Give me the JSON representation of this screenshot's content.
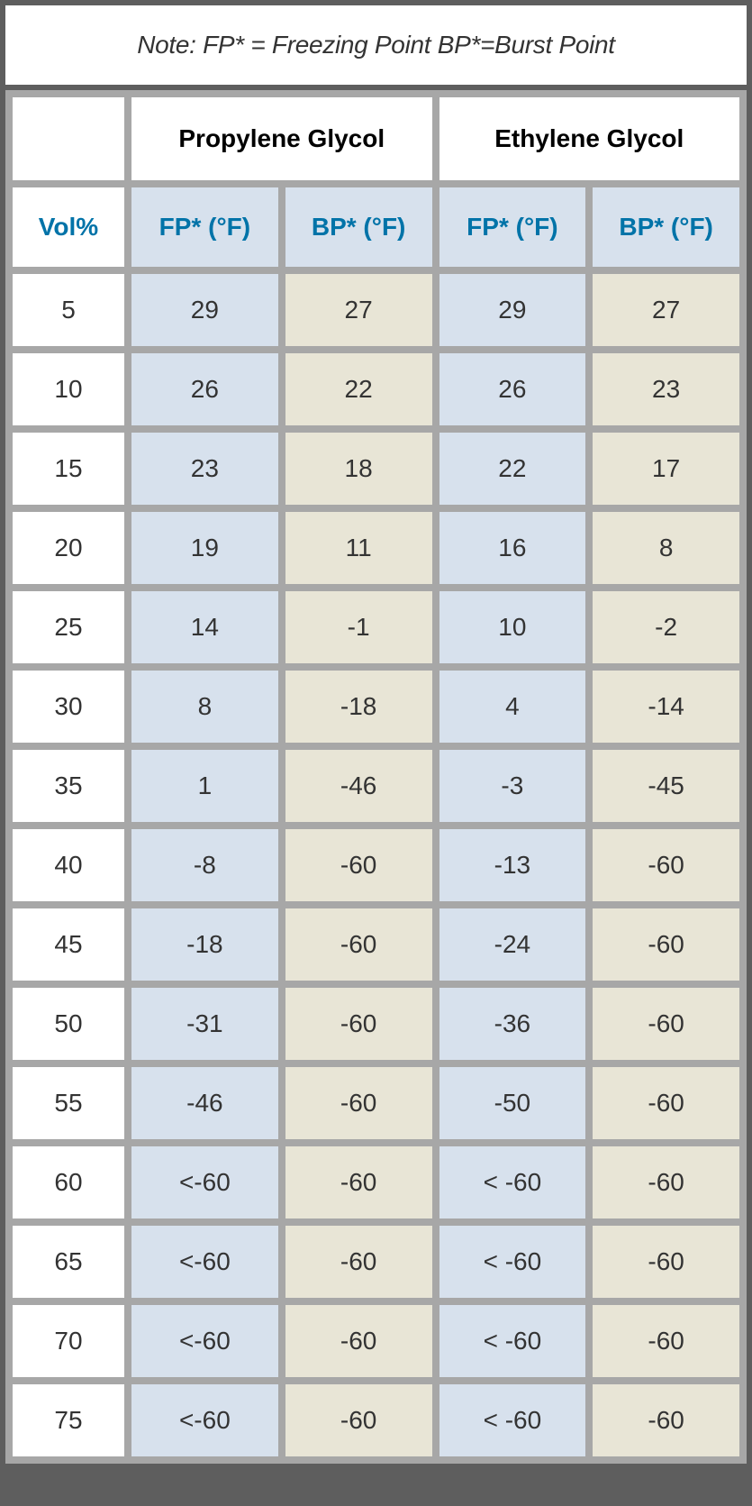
{
  "note": "Note: FP* = Freezing Point   BP*=Burst Point",
  "table": {
    "type": "table",
    "colors": {
      "background_outer": "#5e5e5e",
      "grid_gap": "#a7a7a7",
      "header_bg": "#ffffff",
      "subheader_bg": "#d7e1ed",
      "vol_cell_bg": "#ffffff",
      "fp_cell_bg": "#d7e1ed",
      "bp_cell_bg": "#e8e5d6",
      "accent_text": "#0073a8",
      "body_text": "#333333"
    },
    "typography": {
      "font_family": "Helvetica",
      "header_fontsize": 28,
      "header_weight": "bold",
      "subheader_fontsize": 28,
      "subheader_weight": "bold",
      "cell_fontsize": 28,
      "note_fontsize": 28,
      "note_style": "italic"
    },
    "group_headers": {
      "blank": "",
      "propylene": "Propylene Glycol",
      "ethylene": "Ethylene Glycol"
    },
    "sub_headers": {
      "vol": "Vol%",
      "fp": "FP* (°F)",
      "bp": "BP* (°F)"
    },
    "columns": [
      {
        "key": "vol",
        "label": "Vol%",
        "width": "16%"
      },
      {
        "key": "pg_fp",
        "label": "FP* (°F)",
        "width": "21%"
      },
      {
        "key": "pg_bp",
        "label": "BP* (°F)",
        "width": "21%"
      },
      {
        "key": "eg_fp",
        "label": "FP* (°F)",
        "width": "21%"
      },
      {
        "key": "eg_bp",
        "label": "BP* (°F)",
        "width": "21%"
      }
    ],
    "rows": [
      {
        "vol": "5",
        "pg_fp": "29",
        "pg_bp": "27",
        "eg_fp": "29",
        "eg_bp": "27"
      },
      {
        "vol": "10",
        "pg_fp": "26",
        "pg_bp": "22",
        "eg_fp": "26",
        "eg_bp": "23"
      },
      {
        "vol": "15",
        "pg_fp": "23",
        "pg_bp": "18",
        "eg_fp": "22",
        "eg_bp": "17"
      },
      {
        "vol": "20",
        "pg_fp": "19",
        "pg_bp": "11",
        "eg_fp": "16",
        "eg_bp": "8"
      },
      {
        "vol": "25",
        "pg_fp": "14",
        "pg_bp": "-1",
        "eg_fp": "10",
        "eg_bp": "-2"
      },
      {
        "vol": "30",
        "pg_fp": "8",
        "pg_bp": "-18",
        "eg_fp": "4",
        "eg_bp": "-14"
      },
      {
        "vol": "35",
        "pg_fp": "1",
        "pg_bp": "-46",
        "eg_fp": "-3",
        "eg_bp": "-45"
      },
      {
        "vol": "40",
        "pg_fp": "-8",
        "pg_bp": "-60",
        "eg_fp": "-13",
        "eg_bp": "-60"
      },
      {
        "vol": "45",
        "pg_fp": "-18",
        "pg_bp": "-60",
        "eg_fp": "-24",
        "eg_bp": "-60"
      },
      {
        "vol": "50",
        "pg_fp": "-31",
        "pg_bp": "-60",
        "eg_fp": "-36",
        "eg_bp": "-60"
      },
      {
        "vol": "55",
        "pg_fp": "-46",
        "pg_bp": "-60",
        "eg_fp": "-50",
        "eg_bp": "-60"
      },
      {
        "vol": "60",
        "pg_fp": "<-60",
        "pg_bp": "-60",
        "eg_fp": "< -60",
        "eg_bp": "-60"
      },
      {
        "vol": "65",
        "pg_fp": "<-60",
        "pg_bp": "-60",
        "eg_fp": "< -60",
        "eg_bp": "-60"
      },
      {
        "vol": "70",
        "pg_fp": "<-60",
        "pg_bp": "-60",
        "eg_fp": "< -60",
        "eg_bp": "-60"
      },
      {
        "vol": "75",
        "pg_fp": "<-60",
        "pg_bp": "-60",
        "eg_fp": "< -60",
        "eg_bp": "-60"
      }
    ]
  }
}
